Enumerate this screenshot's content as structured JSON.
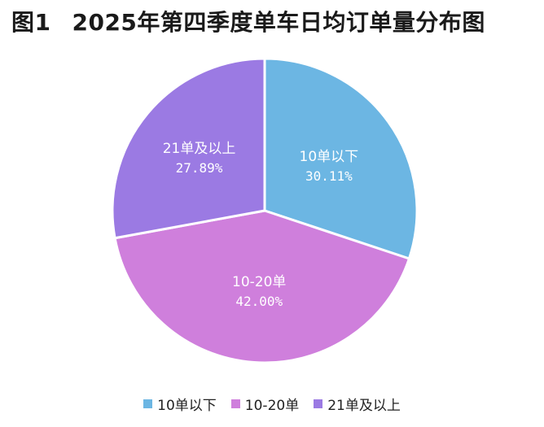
{
  "figure_label": "图1",
  "title": "2025年第四季度单车日均订单量分布图",
  "chart_data": {
    "type": "pie",
    "slices": [
      {
        "label": "10单以下",
        "value": 30.11,
        "value_text": "30.11%",
        "color": "#6cb6e3"
      },
      {
        "label": "10-20单",
        "value": 42.0,
        "value_text": "42.00%",
        "color": "#cf7fdc"
      },
      {
        "label": "21单及以上",
        "value": 27.89,
        "value_text": "27.89%",
        "color": "#9b7ae3"
      }
    ],
    "start": "12 o'clock, clockwise",
    "legend_position": "bottom"
  }
}
